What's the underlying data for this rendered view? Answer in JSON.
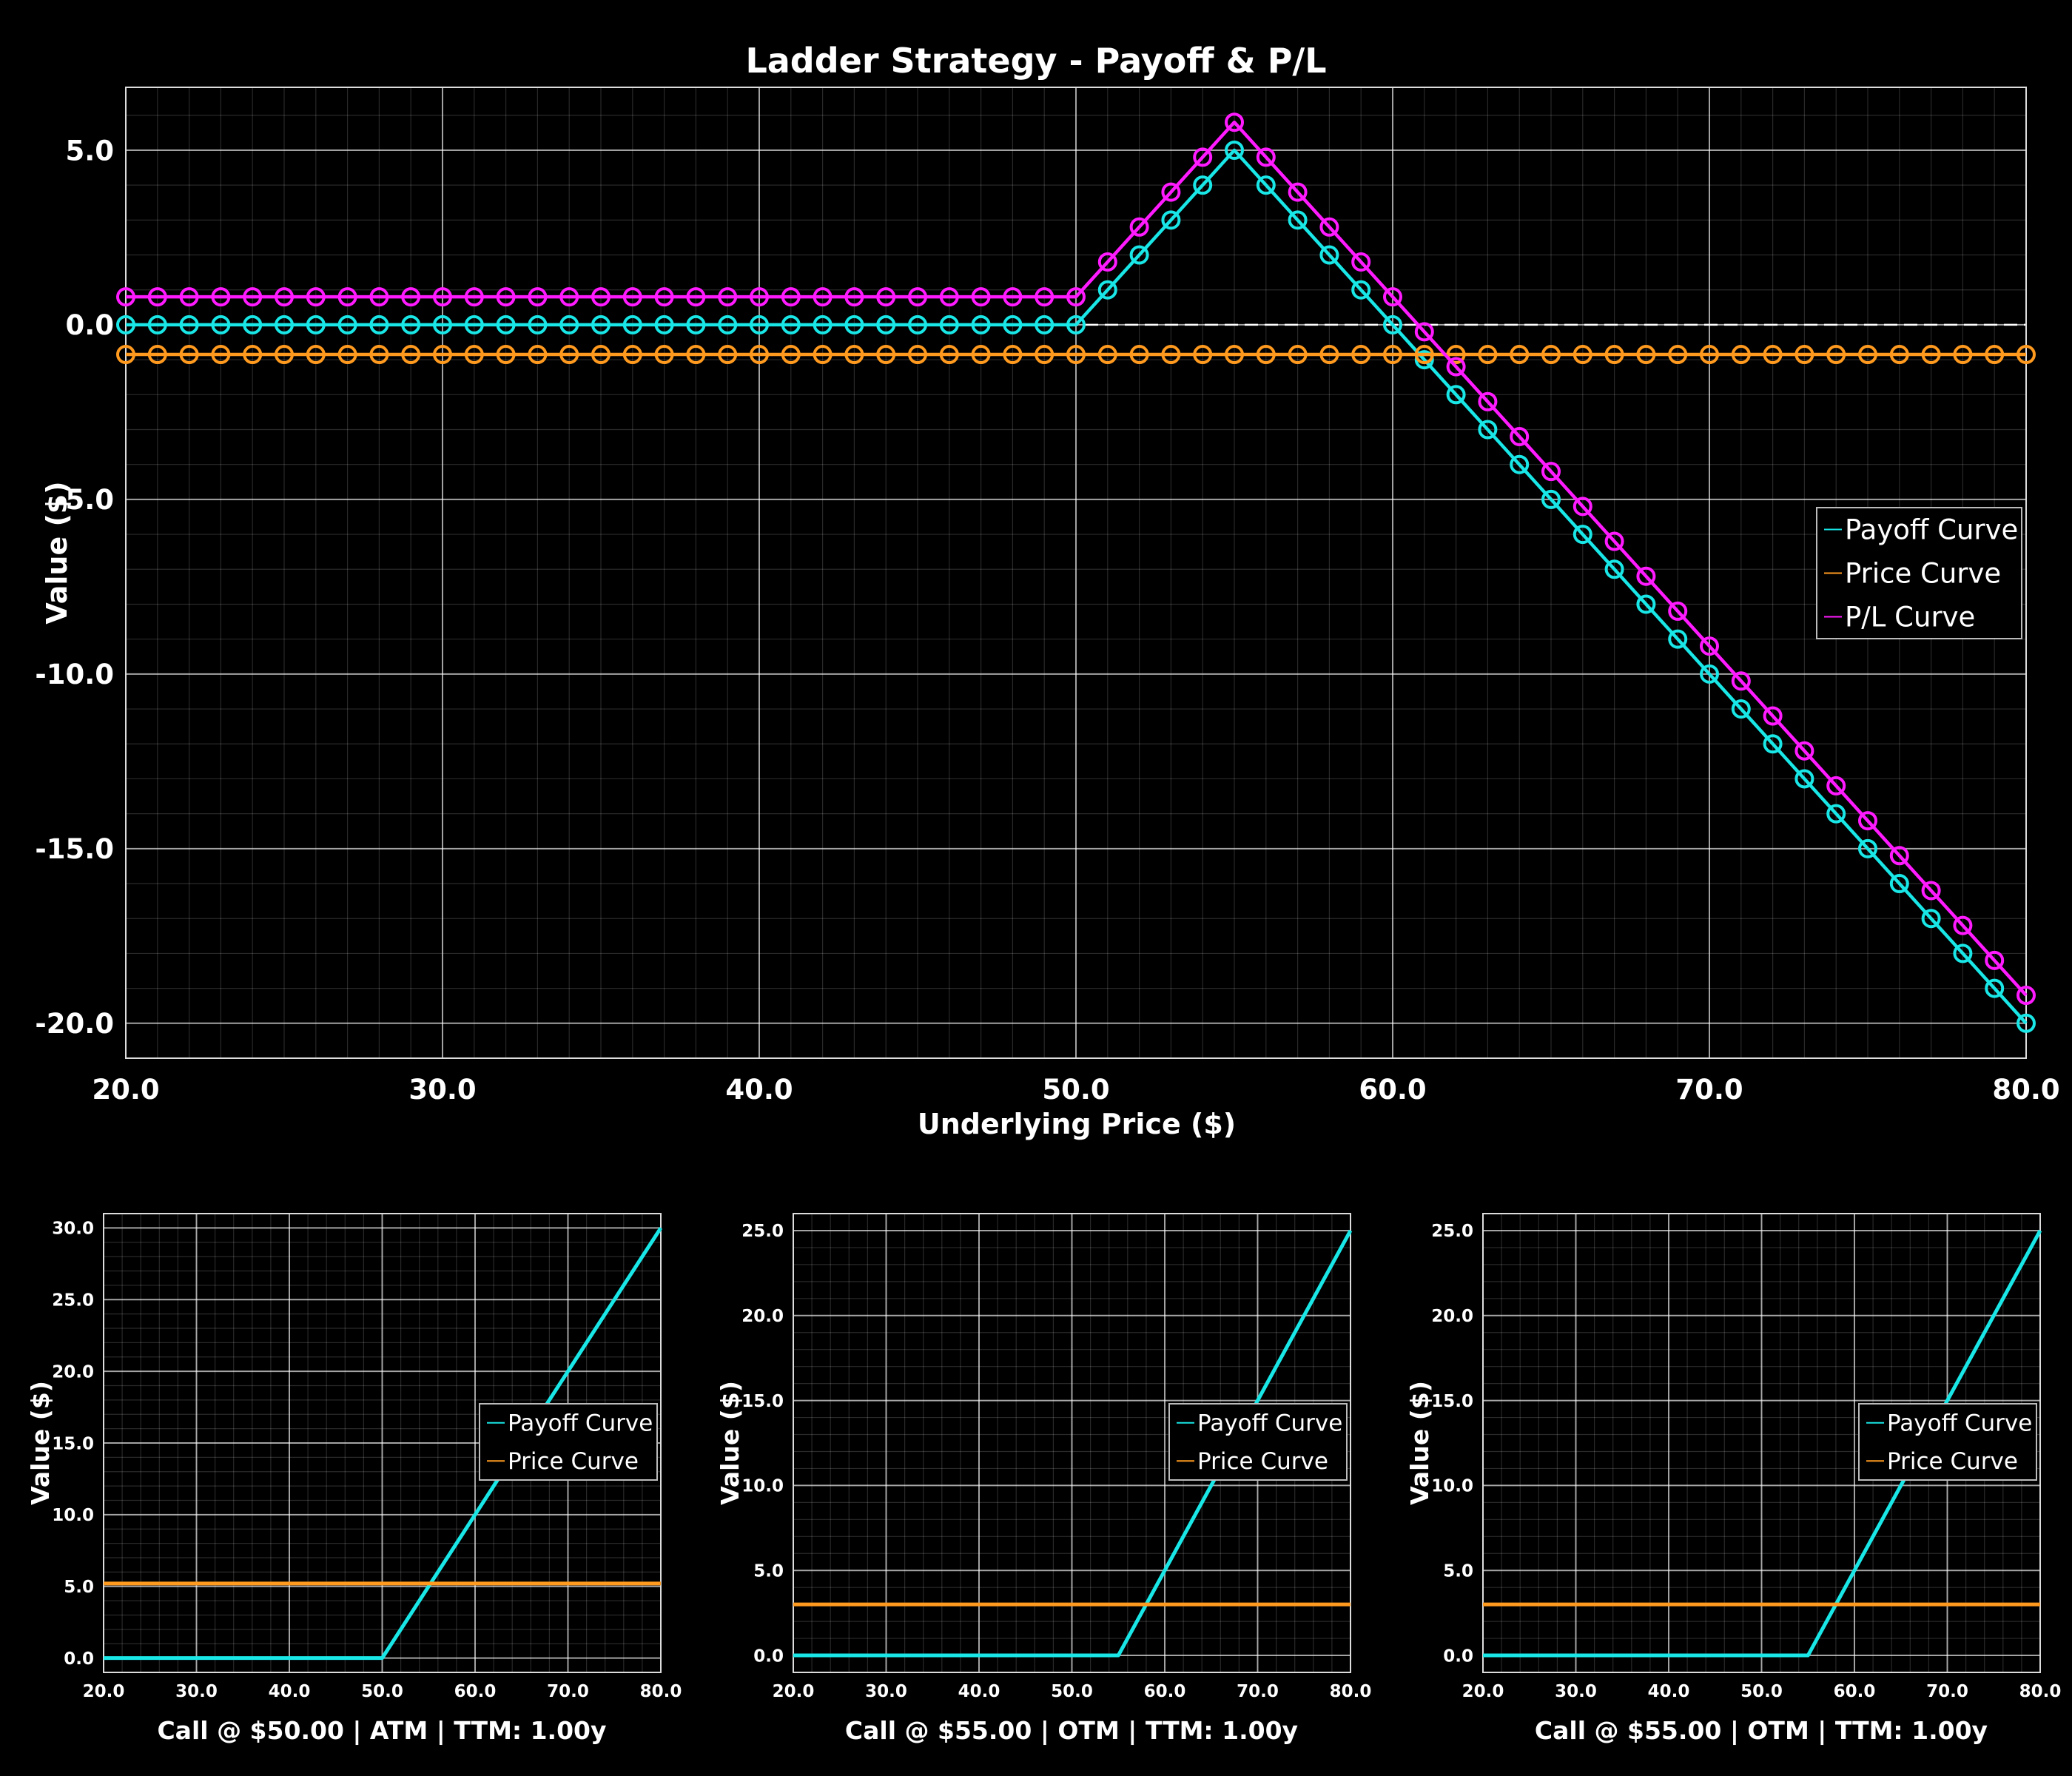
{
  "chart_data": [
    {
      "type": "line",
      "title": "Ladder Strategy - Payoff & P/L",
      "xlabel": "Underlying Price ($)",
      "ylabel": "Value ($)",
      "xlim": [
        20,
        80
      ],
      "ylim": [
        -21,
        6.8
      ],
      "xticks": [
        "20.0",
        "30.0",
        "40.0",
        "50.0",
        "60.0",
        "70.0",
        "80.0"
      ],
      "yticks": [
        "5.0",
        "0.0",
        "-5.0",
        "-10.0",
        "-15.0",
        "-20.0"
      ],
      "grid": true,
      "zero_line": true,
      "markers": true,
      "legend": {
        "position": "center-right",
        "entries": [
          "Payoff Curve",
          "Price Curve",
          "P/L Curve"
        ]
      },
      "colors": [
        "#19e6e6",
        "#ff9a1f",
        "#ff1aff"
      ],
      "x": [
        20,
        21,
        22,
        23,
        24,
        25,
        26,
        27,
        28,
        29,
        30,
        31,
        32,
        33,
        34,
        35,
        36,
        37,
        38,
        39,
        40,
        41,
        42,
        43,
        44,
        45,
        46,
        47,
        48,
        49,
        50,
        51,
        52,
        53,
        54,
        55,
        56,
        57,
        58,
        59,
        60,
        61,
        62,
        63,
        64,
        65,
        66,
        67,
        68,
        69,
        70,
        71,
        72,
        73,
        74,
        75,
        76,
        77,
        78,
        79,
        80
      ],
      "series": [
        {
          "name": "Payoff Curve",
          "values": [
            0,
            0,
            0,
            0,
            0,
            0,
            0,
            0,
            0,
            0,
            0,
            0,
            0,
            0,
            0,
            0,
            0,
            0,
            0,
            0,
            0,
            0,
            0,
            0,
            0,
            0,
            0,
            0,
            0,
            0,
            0,
            1,
            2,
            3,
            4,
            5,
            4,
            3,
            2,
            1,
            0,
            -1,
            -2,
            -3,
            -4,
            -5,
            -6,
            -7,
            -8,
            -9,
            -10,
            -11,
            -12,
            -13,
            -14,
            -15,
            -16,
            -17,
            -18,
            -19,
            -20
          ]
        },
        {
          "name": "Price Curve",
          "values": [
            -0.85,
            -0.85,
            -0.85,
            -0.85,
            -0.85,
            -0.85,
            -0.85,
            -0.85,
            -0.85,
            -0.85,
            -0.85,
            -0.85,
            -0.85,
            -0.85,
            -0.85,
            -0.85,
            -0.85,
            -0.85,
            -0.85,
            -0.85,
            -0.85,
            -0.85,
            -0.85,
            -0.85,
            -0.85,
            -0.85,
            -0.85,
            -0.85,
            -0.85,
            -0.85,
            -0.85,
            -0.85,
            -0.85,
            -0.85,
            -0.85,
            -0.85,
            -0.85,
            -0.85,
            -0.85,
            -0.85,
            -0.85,
            -0.85,
            -0.85,
            -0.85,
            -0.85,
            -0.85,
            -0.85,
            -0.85,
            -0.85,
            -0.85,
            -0.85,
            -0.85,
            -0.85,
            -0.85,
            -0.85,
            -0.85,
            -0.85,
            -0.85,
            -0.85,
            -0.85,
            -0.85
          ]
        },
        {
          "name": "P/L Curve",
          "values": [
            0.8,
            0.8,
            0.8,
            0.8,
            0.8,
            0.8,
            0.8,
            0.8,
            0.8,
            0.8,
            0.8,
            0.8,
            0.8,
            0.8,
            0.8,
            0.8,
            0.8,
            0.8,
            0.8,
            0.8,
            0.8,
            0.8,
            0.8,
            0.8,
            0.8,
            0.8,
            0.8,
            0.8,
            0.8,
            0.8,
            0.8,
            1.8,
            2.8,
            3.8,
            4.8,
            5.8,
            4.8,
            3.8,
            2.8,
            1.8,
            0.8,
            -0.2,
            -1.2,
            -2.2,
            -3.2,
            -4.2,
            -5.2,
            -6.2,
            -7.2,
            -8.2,
            -9.2,
            -10.2,
            -11.2,
            -12.2,
            -13.2,
            -14.2,
            -15.2,
            -16.2,
            -17.2,
            -18.2,
            -19.2
          ]
        }
      ]
    },
    {
      "type": "line",
      "title": "",
      "xlabel": "Call @ $50.00 | ATM | TTM: 1.00y",
      "ylabel": "Value ($)",
      "xlim": [
        20,
        80
      ],
      "ylim": [
        -1,
        31
      ],
      "xticks": [
        "20.0",
        "30.0",
        "40.0",
        "50.0",
        "60.0",
        "70.0",
        "80.0"
      ],
      "yticks": [
        "0.0",
        "5.0",
        "10.0",
        "15.0",
        "20.0",
        "25.0",
        "30.0"
      ],
      "grid": true,
      "legend": {
        "position": "center-right",
        "entries": [
          "Payoff Curve",
          "Price Curve"
        ]
      },
      "colors": [
        "#19e6e6",
        "#ff9a1f"
      ],
      "x": [
        20,
        50,
        80
      ],
      "series": [
        {
          "name": "Payoff Curve",
          "values": [
            0,
            0,
            30
          ]
        },
        {
          "name": "Price Curve",
          "values": [
            5.2,
            5.2,
            5.2
          ]
        }
      ]
    },
    {
      "type": "line",
      "title": "",
      "xlabel": "Call @ $55.00 | OTM | TTM: 1.00y",
      "ylabel": "Value ($)",
      "xlim": [
        20,
        80
      ],
      "ylim": [
        -1,
        26
      ],
      "xticks": [
        "20.0",
        "30.0",
        "40.0",
        "50.0",
        "60.0",
        "70.0",
        "80.0"
      ],
      "yticks": [
        "0.0",
        "5.0",
        "10.0",
        "15.0",
        "20.0",
        "25.0"
      ],
      "grid": true,
      "legend": {
        "position": "center-right",
        "entries": [
          "Payoff Curve",
          "Price Curve"
        ]
      },
      "colors": [
        "#19e6e6",
        "#ff9a1f"
      ],
      "x": [
        20,
        55,
        80
      ],
      "series": [
        {
          "name": "Payoff Curve",
          "values": [
            0,
            0,
            25
          ]
        },
        {
          "name": "Price Curve",
          "values": [
            3.0,
            3.0,
            3.0
          ]
        }
      ]
    },
    {
      "type": "line",
      "title": "",
      "xlabel": "Call @ $55.00 | OTM | TTM: 1.00y",
      "ylabel": "Value ($)",
      "xlim": [
        20,
        80
      ],
      "ylim": [
        -1,
        26
      ],
      "xticks": [
        "20.0",
        "30.0",
        "40.0",
        "50.0",
        "60.0",
        "70.0",
        "80.0"
      ],
      "yticks": [
        "0.0",
        "5.0",
        "10.0",
        "15.0",
        "20.0",
        "25.0"
      ],
      "grid": true,
      "legend": {
        "position": "center-right",
        "entries": [
          "Payoff Curve",
          "Price Curve"
        ]
      },
      "colors": [
        "#19e6e6",
        "#ff9a1f"
      ],
      "x": [
        20,
        55,
        80
      ],
      "series": [
        {
          "name": "Payoff Curve",
          "values": [
            0,
            0,
            25
          ]
        },
        {
          "name": "Price Curve",
          "values": [
            3.0,
            3.0,
            3.0
          ]
        }
      ]
    }
  ]
}
